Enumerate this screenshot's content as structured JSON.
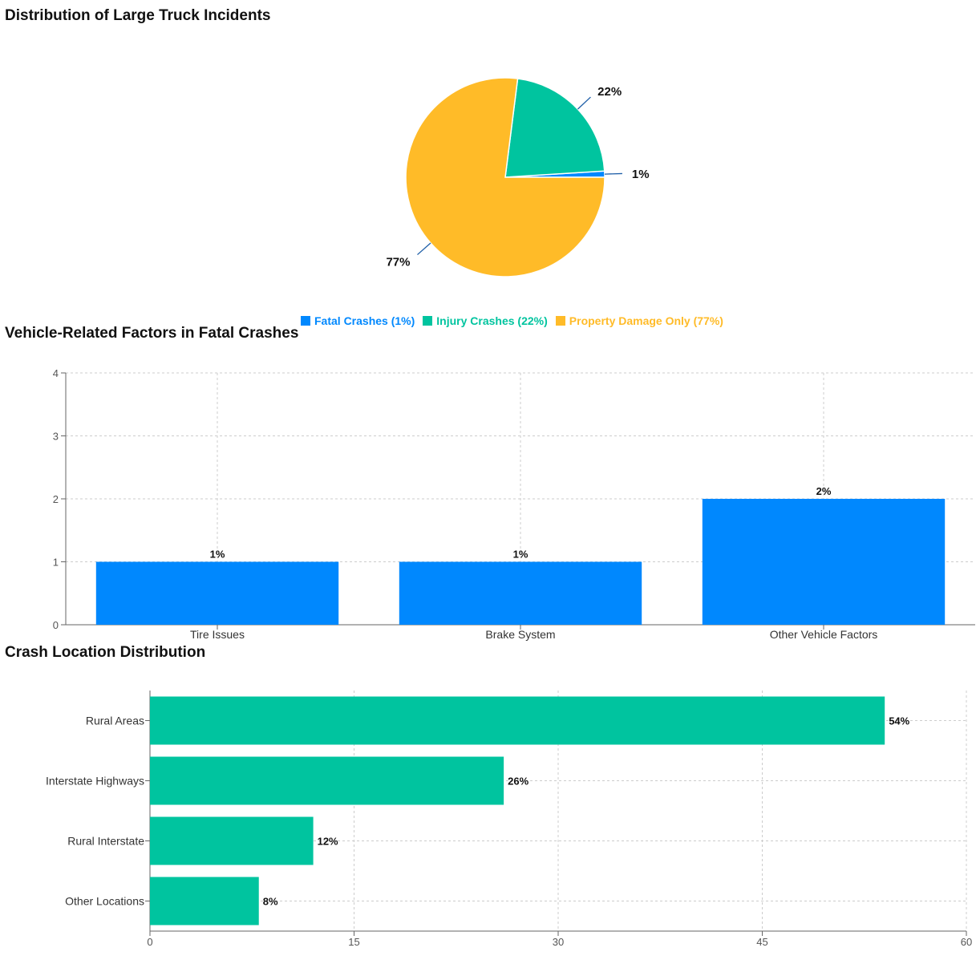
{
  "charts": {
    "pie": {
      "title": "Distribution of Large Truck Incidents"
    },
    "vehicle": {
      "title": "Vehicle-Related Factors in Fatal Crashes"
    },
    "location": {
      "title": "Crash Location Distribution"
    }
  },
  "legend": [
    {
      "label": "Fatal Crashes (1%)",
      "color": "#0088fe"
    },
    {
      "label": "Injury Crashes (22%)",
      "color": "#00c49f"
    },
    {
      "label": "Property Damage Only (77%)",
      "color": "#ffbb28"
    }
  ],
  "chart_data": [
    {
      "type": "pie",
      "title": "Distribution of Large Truck Incidents",
      "slices": [
        {
          "name": "Fatal Crashes",
          "value": 1,
          "label": "1%",
          "color": "#0088fe"
        },
        {
          "name": "Injury Crashes",
          "value": 22,
          "label": "22%",
          "color": "#00c49f"
        },
        {
          "name": "Property Damage Only",
          "value": 77,
          "label": "77%",
          "color": "#ffbb28"
        }
      ],
      "legend": "bottom"
    },
    {
      "type": "bar",
      "title": "Vehicle-Related Factors in Fatal Crashes",
      "categories": [
        "Tire Issues",
        "Brake System",
        "Other Vehicle Factors"
      ],
      "values": [
        1,
        1,
        2
      ],
      "data_labels": [
        "1%",
        "1%",
        "2%"
      ],
      "ylim": [
        0,
        4
      ],
      "yticks": [
        0,
        1,
        2,
        3,
        4
      ],
      "color": "#0088fe",
      "grid": true
    },
    {
      "type": "bar",
      "orientation": "horizontal",
      "title": "Crash Location Distribution",
      "categories": [
        "Rural Areas",
        "Interstate Highways",
        "Rural Interstate",
        "Other Locations"
      ],
      "values": [
        54,
        26,
        12,
        8
      ],
      "data_labels": [
        "54%",
        "26%",
        "12%",
        "8%"
      ],
      "xlim": [
        0,
        60
      ],
      "xticks": [
        0,
        15,
        30,
        45,
        60
      ],
      "color": "#00c49f",
      "grid": true
    }
  ]
}
